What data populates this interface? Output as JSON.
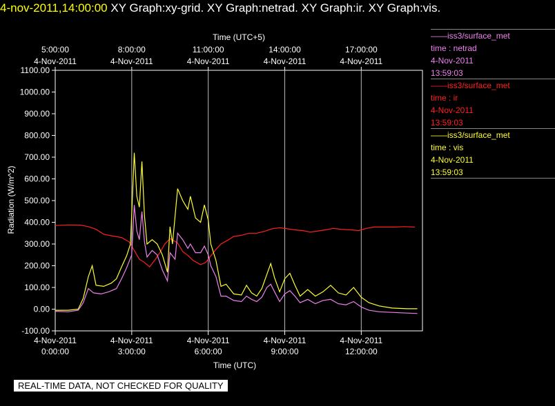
{
  "header": {
    "timestamp": "4-nov-2011,14:00:00",
    "graph_titles": "XY Graph:xy-grid.  XY Graph:netrad.  XY Graph:ir.  XY Graph:vis."
  },
  "legend": [
    {
      "line": "——iss3/surface_met",
      "var": "time : netrad",
      "date": "4-Nov-2011",
      "time": "13:59:03",
      "color": "#ee82ee"
    },
    {
      "line": "——iss3/surface_met",
      "var": "time : ir",
      "date": "4-Nov-2011",
      "time": "13:59:03",
      "color": "#ff2020"
    },
    {
      "line": "——iss3/surface_met",
      "var": "time : vis",
      "date": "4-Nov-2011",
      "time": "13:59:03",
      "color": "#ffff33"
    }
  ],
  "disclaimer": "REAL-TIME DATA, NOT CHECKED FOR QUALITY",
  "chart_data": {
    "type": "line",
    "title": "",
    "xlabel": "Time (UTC)",
    "x2label": "Time (UTC+5)",
    "ylabel": "Radiation (W/m^2)",
    "xlim": [
      0,
      14.4
    ],
    "ylim": [
      -100,
      1100
    ],
    "y_ticks": [
      "-100.00",
      "0.00",
      "100.00",
      "200.00",
      "300.00",
      "400.00",
      "500.00",
      "600.00",
      "700.00",
      "800.00",
      "900.00",
      "1000.00",
      "1100.00"
    ],
    "x_ticks": [
      {
        "h": 0,
        "date": "4-Nov-2011",
        "time": "0:00:00"
      },
      {
        "h": 3,
        "date": "4-Nov-2011",
        "time": "3:00:00"
      },
      {
        "h": 6,
        "date": "4-Nov-2011",
        "time": "6:00:00"
      },
      {
        "h": 9,
        "date": "4-Nov-2011",
        "time": "9:00:00"
      },
      {
        "h": 12,
        "date": "4-Nov-2011",
        "time": "12:00:00"
      }
    ],
    "x2_ticks": [
      {
        "h": 0,
        "time": "5:00:00",
        "date": "4-Nov-2011"
      },
      {
        "h": 3,
        "time": "8:00:00",
        "date": "4-Nov-2011"
      },
      {
        "h": 6,
        "time": "11:00:00",
        "date": "4-Nov-2011"
      },
      {
        "h": 9,
        "time": "14:00:00",
        "date": "4-Nov-2011"
      },
      {
        "h": 12,
        "time": "17:00:00",
        "date": "4-Nov-2011"
      }
    ],
    "grid": "vertical",
    "series": [
      {
        "name": "time : ir",
        "color": "#ff2020",
        "points": [
          [
            0,
            385
          ],
          [
            0.5,
            388
          ],
          [
            1,
            387
          ],
          [
            1.3,
            380
          ],
          [
            1.6,
            368
          ],
          [
            1.9,
            345
          ],
          [
            2.2,
            338
          ],
          [
            2.6,
            330
          ],
          [
            2.9,
            310
          ],
          [
            3.1,
            270
          ],
          [
            3.3,
            230
          ],
          [
            3.5,
            215
          ],
          [
            3.7,
            195
          ],
          [
            3.9,
            225
          ],
          [
            4.1,
            260
          ],
          [
            4.3,
            300
          ],
          [
            4.5,
            325
          ],
          [
            4.8,
            305
          ],
          [
            5.0,
            265
          ],
          [
            5.2,
            248
          ],
          [
            5.4,
            225
          ],
          [
            5.7,
            205
          ],
          [
            5.9,
            215
          ],
          [
            6.1,
            245
          ],
          [
            6.3,
            275
          ],
          [
            6.5,
            300
          ],
          [
            6.8,
            320
          ],
          [
            7.0,
            335
          ],
          [
            7.3,
            340
          ],
          [
            7.6,
            350
          ],
          [
            7.9,
            350
          ],
          [
            8.2,
            358
          ],
          [
            8.5,
            370
          ],
          [
            8.8,
            375
          ],
          [
            9.1,
            370
          ],
          [
            9.4,
            365
          ],
          [
            9.7,
            362
          ],
          [
            10.0,
            355
          ],
          [
            10.3,
            360
          ],
          [
            10.6,
            365
          ],
          [
            10.9,
            372
          ],
          [
            11.2,
            368
          ],
          [
            11.6,
            365
          ],
          [
            11.9,
            362
          ],
          [
            12.2,
            372
          ],
          [
            12.5,
            378
          ],
          [
            12.9,
            378
          ],
          [
            13.3,
            378
          ],
          [
            13.7,
            380
          ],
          [
            14.1,
            378
          ]
        ]
      },
      {
        "name": "time : vis",
        "color": "#ffff33",
        "points": [
          [
            0,
            -5
          ],
          [
            0.5,
            -5
          ],
          [
            0.9,
            0
          ],
          [
            1.1,
            50
          ],
          [
            1.3,
            150
          ],
          [
            1.45,
            200
          ],
          [
            1.6,
            110
          ],
          [
            1.9,
            105
          ],
          [
            2.2,
            120
          ],
          [
            2.4,
            140
          ],
          [
            2.6,
            195
          ],
          [
            2.8,
            245
          ],
          [
            2.95,
            300
          ],
          [
            3.1,
            720
          ],
          [
            3.2,
            520
          ],
          [
            3.3,
            470
          ],
          [
            3.4,
            680
          ],
          [
            3.5,
            430
          ],
          [
            3.6,
            300
          ],
          [
            3.8,
            320
          ],
          [
            4.0,
            300
          ],
          [
            4.2,
            250
          ],
          [
            4.4,
            170
          ],
          [
            4.5,
            380
          ],
          [
            4.6,
            300
          ],
          [
            4.8,
            555
          ],
          [
            5.0,
            500
          ],
          [
            5.2,
            460
          ],
          [
            5.3,
            520
          ],
          [
            5.5,
            420
          ],
          [
            5.7,
            400
          ],
          [
            5.85,
            480
          ],
          [
            6.0,
            410
          ],
          [
            6.1,
            300
          ],
          [
            6.3,
            225
          ],
          [
            6.5,
            105
          ],
          [
            6.7,
            115
          ],
          [
            7.0,
            70
          ],
          [
            7.3,
            65
          ],
          [
            7.5,
            110
          ],
          [
            7.7,
            75
          ],
          [
            7.9,
            60
          ],
          [
            8.1,
            95
          ],
          [
            8.3,
            160
          ],
          [
            8.45,
            210
          ],
          [
            8.6,
            145
          ],
          [
            8.8,
            80
          ],
          [
            9.0,
            140
          ],
          [
            9.2,
            165
          ],
          [
            9.4,
            110
          ],
          [
            9.6,
            60
          ],
          [
            9.9,
            90
          ],
          [
            10.2,
            60
          ],
          [
            10.5,
            80
          ],
          [
            10.8,
            110
          ],
          [
            11.1,
            75
          ],
          [
            11.4,
            65
          ],
          [
            11.7,
            100
          ],
          [
            12.0,
            55
          ],
          [
            12.3,
            30
          ],
          [
            12.7,
            15
          ],
          [
            13.2,
            5
          ],
          [
            13.8,
            2
          ],
          [
            14.2,
            2
          ]
        ]
      },
      {
        "name": "time : netrad",
        "color": "#ee82ee",
        "points": [
          [
            0,
            -10
          ],
          [
            0.5,
            -12
          ],
          [
            0.9,
            -5
          ],
          [
            1.1,
            30
          ],
          [
            1.3,
            95
          ],
          [
            1.5,
            75
          ],
          [
            1.8,
            70
          ],
          [
            2.1,
            80
          ],
          [
            2.4,
            95
          ],
          [
            2.6,
            140
          ],
          [
            2.8,
            190
          ],
          [
            3.0,
            250
          ],
          [
            3.1,
            480
          ],
          [
            3.2,
            360
          ],
          [
            3.3,
            320
          ],
          [
            3.4,
            450
          ],
          [
            3.5,
            310
          ],
          [
            3.6,
            240
          ],
          [
            3.8,
            270
          ],
          [
            4.0,
            250
          ],
          [
            4.2,
            180
          ],
          [
            4.4,
            130
          ],
          [
            4.5,
            260
          ],
          [
            4.7,
            230
          ],
          [
            4.8,
            350
          ],
          [
            5.0,
            320
          ],
          [
            5.2,
            280
          ],
          [
            5.3,
            300
          ],
          [
            5.5,
            260
          ],
          [
            5.7,
            260
          ],
          [
            5.85,
            290
          ],
          [
            6.0,
            250
          ],
          [
            6.1,
            200
          ],
          [
            6.3,
            150
          ],
          [
            6.5,
            60
          ],
          [
            6.7,
            60
          ],
          [
            7.0,
            40
          ],
          [
            7.3,
            35
          ],
          [
            7.5,
            60
          ],
          [
            7.7,
            45
          ],
          [
            7.9,
            35
          ],
          [
            8.1,
            55
          ],
          [
            8.3,
            100
          ],
          [
            8.45,
            115
          ],
          [
            8.6,
            80
          ],
          [
            8.8,
            35
          ],
          [
            9.0,
            70
          ],
          [
            9.2,
            85
          ],
          [
            9.4,
            60
          ],
          [
            9.6,
            30
          ],
          [
            9.9,
            45
          ],
          [
            10.2,
            25
          ],
          [
            10.5,
            40
          ],
          [
            10.8,
            45
          ],
          [
            11.1,
            25
          ],
          [
            11.4,
            20
          ],
          [
            11.7,
            35
          ],
          [
            12.0,
            10
          ],
          [
            12.3,
            -5
          ],
          [
            12.7,
            -12
          ],
          [
            13.2,
            -15
          ],
          [
            13.8,
            -18
          ],
          [
            14.2,
            -20
          ]
        ]
      }
    ]
  }
}
